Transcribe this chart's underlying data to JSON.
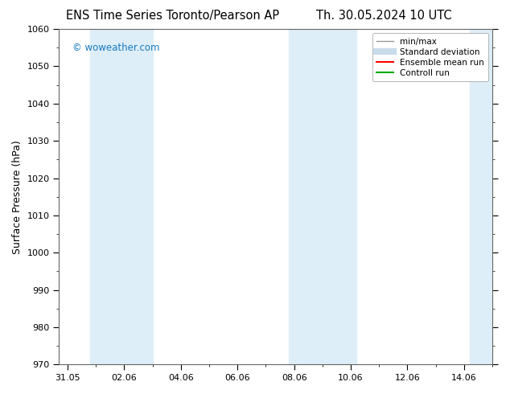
{
  "title_left": "ENS Time Series Toronto/Pearson AP",
  "title_right": "Th. 30.05.2024 10 UTC",
  "ylabel": "Surface Pressure (hPa)",
  "ylim": [
    970,
    1060
  ],
  "yticks": [
    970,
    980,
    990,
    1000,
    1010,
    1020,
    1030,
    1040,
    1050,
    1060
  ],
  "xtick_labels": [
    "31.05",
    "02.06",
    "04.06",
    "06.06",
    "08.06",
    "10.06",
    "12.06",
    "14.06"
  ],
  "xtick_positions": [
    0,
    2,
    4,
    6,
    8,
    10,
    12,
    14
  ],
  "xlim": [
    -0.3,
    15.0
  ],
  "watermark": "© woweather.com",
  "watermark_color": "#1a7abf",
  "background_color": "#ffffff",
  "plot_bg_color": "#ffffff",
  "shaded_bands": [
    {
      "x_start": 0.8,
      "x_end": 3.0,
      "color": "#ddeef8"
    },
    {
      "x_start": 7.8,
      "x_end": 10.2,
      "color": "#ddeef8"
    },
    {
      "x_start": 14.2,
      "x_end": 15.2,
      "color": "#ddeef8"
    }
  ],
  "legend_entries": [
    {
      "label": "min/max",
      "color": "#999999",
      "lw": 1.0,
      "style": "minmax"
    },
    {
      "label": "Standard deviation",
      "color": "#c8dcea",
      "lw": 7,
      "style": "band"
    },
    {
      "label": "Ensemble mean run",
      "color": "#ff0000",
      "lw": 1.5,
      "style": "line"
    },
    {
      "label": "Controll run",
      "color": "#00aa00",
      "lw": 1.5,
      "style": "line"
    }
  ],
  "title_fontsize": 10.5,
  "axis_fontsize": 9,
  "tick_fontsize": 8,
  "legend_fontsize": 7.5
}
